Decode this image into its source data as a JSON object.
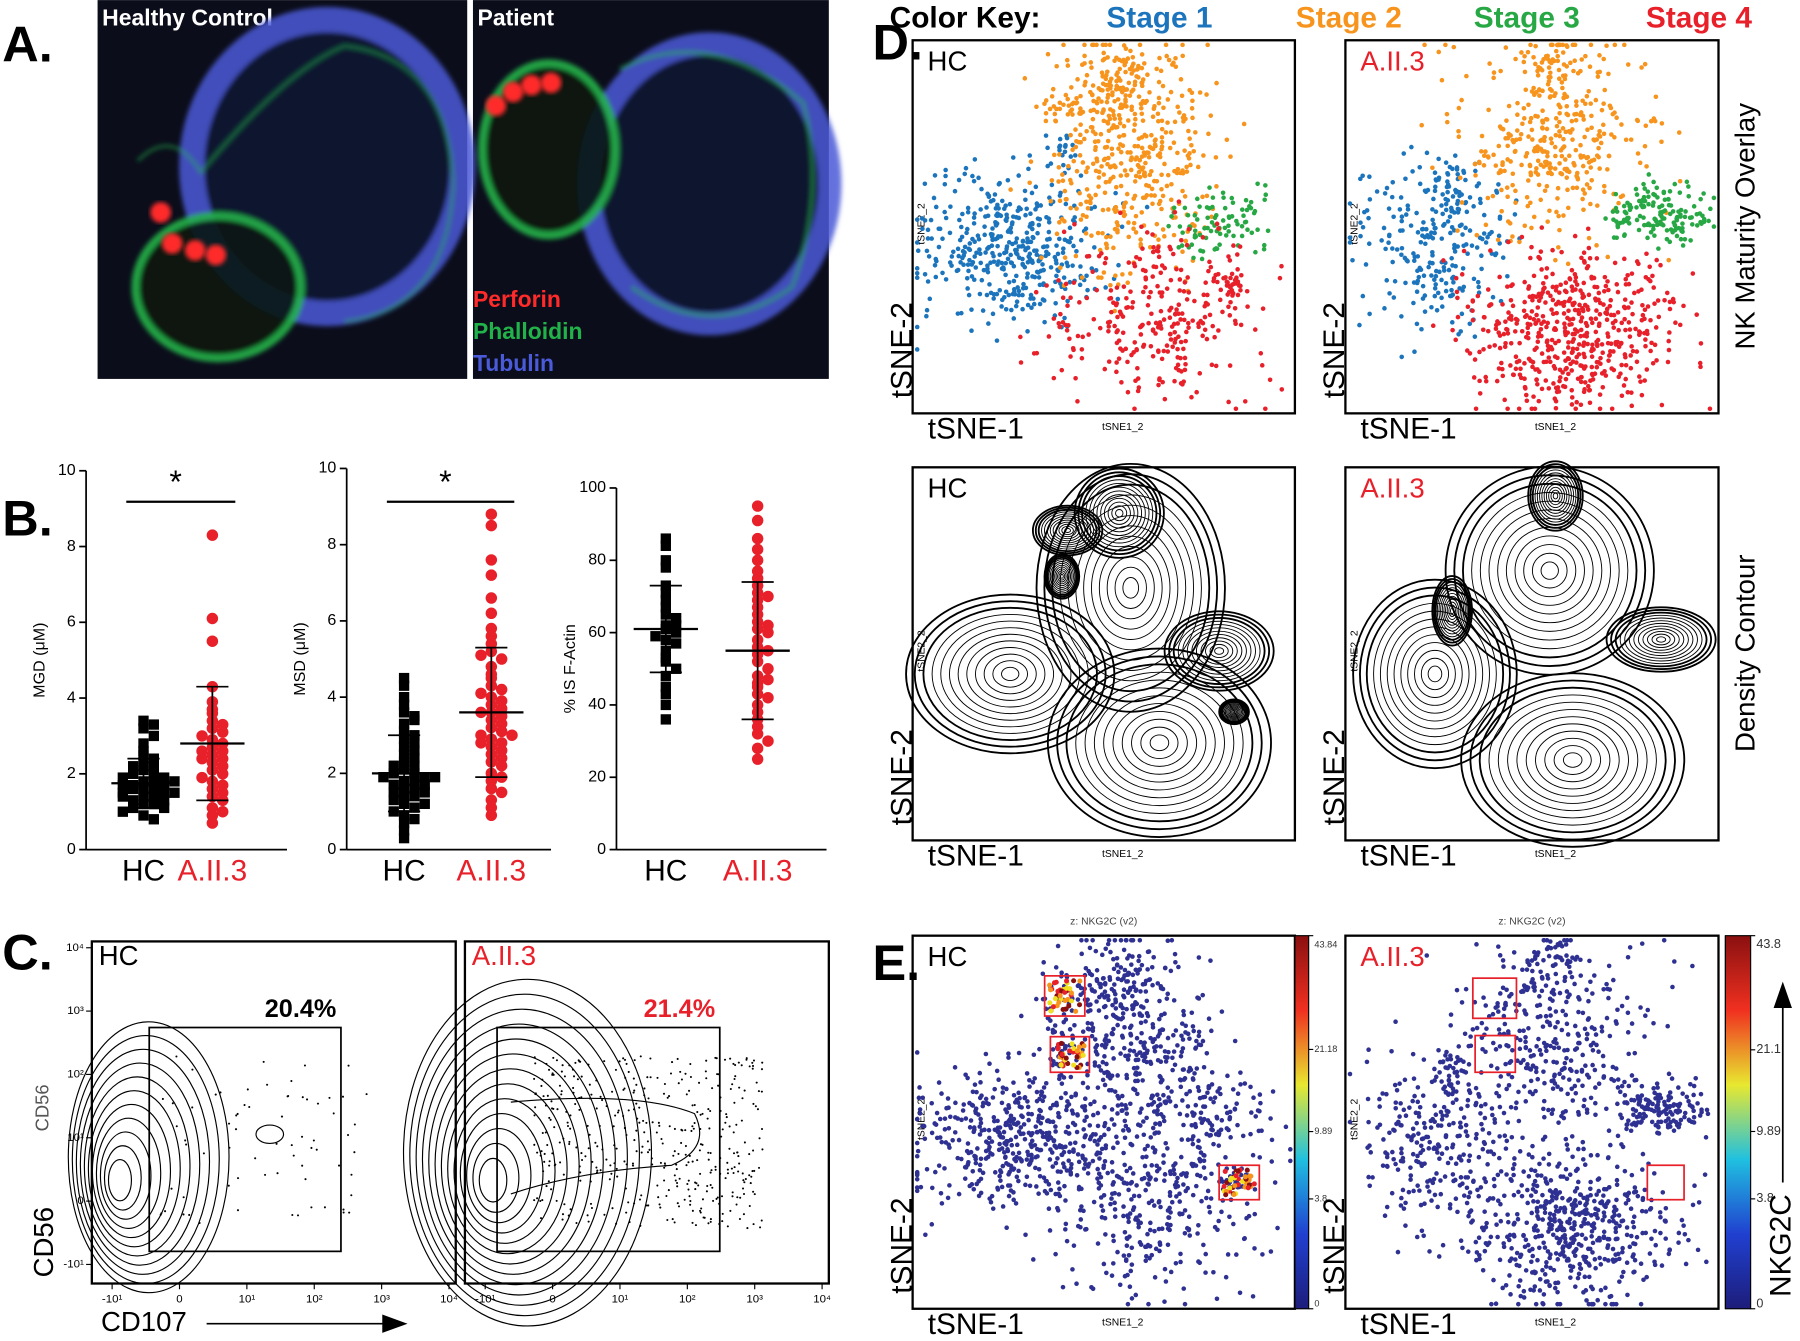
{
  "panel_a": {
    "label": "A.",
    "images": [
      {
        "title": "Healthy Control"
      },
      {
        "title": "Patient"
      }
    ],
    "legend": [
      {
        "name": "Perforin",
        "color": "#ff2a2a"
      },
      {
        "name": "Phalloidin",
        "color": "#22b24a"
      },
      {
        "name": "Tubulin",
        "color": "#4a5ad8"
      }
    ]
  },
  "panel_b": {
    "label": "B.",
    "charts": [
      {
        "type": "scatter",
        "y_label": "MGD (μM)",
        "ylim": [
          0,
          10
        ],
        "yticks": [
          0,
          2,
          4,
          6,
          8,
          10
        ],
        "significance": "*",
        "groups": [
          {
            "category": "HC",
            "color": "#000000",
            "marker": "square",
            "mean": 1.75,
            "sd": 0.65,
            "values": [
              3.4,
              3.3,
              3.2,
              3.0,
              2.8,
              2.6,
              2.5,
              2.4,
              2.3,
              2.2,
              2.1,
              2.0,
              2.0,
              1.9,
              1.9,
              1.8,
              1.8,
              1.7,
              1.7,
              1.7,
              1.6,
              1.6,
              1.6,
              1.5,
              1.5,
              1.5,
              1.4,
              1.4,
              1.3,
              1.3,
              1.2,
              1.2,
              1.1,
              1.1,
              1.0,
              0.9,
              0.8,
              1.8,
              2.2,
              1.4
            ]
          },
          {
            "category": "A.II.3",
            "color": "#e8202a",
            "marker": "circle",
            "mean": 2.8,
            "sd": 1.5,
            "values": [
              8.3,
              6.1,
              5.5,
              4.3,
              3.9,
              3.7,
              3.6,
              3.4,
              3.3,
              3.2,
              3.1,
              3.0,
              2.9,
              2.8,
              2.7,
              2.6,
              2.6,
              2.5,
              2.4,
              2.3,
              2.2,
              2.1,
              2.0,
              1.9,
              1.8,
              1.7,
              1.6,
              1.5,
              1.4,
              1.3,
              1.1,
              1.0,
              0.9,
              0.7,
              2.4
            ]
          }
        ]
      },
      {
        "type": "scatter",
        "y_label": "MSD (μM)",
        "ylim": [
          0,
          10
        ],
        "yticks": [
          0,
          2,
          4,
          6,
          8,
          10
        ],
        "significance": "*",
        "groups": [
          {
            "category": "HC",
            "color": "#000000",
            "marker": "square",
            "mean": 2.0,
            "sd": 1.0,
            "values": [
              4.5,
              4.3,
              4.0,
              3.8,
              3.6,
              3.5,
              3.3,
              3.1,
              3.0,
              2.9,
              2.7,
              2.6,
              2.5,
              2.4,
              2.3,
              2.2,
              2.1,
              2.0,
              2.0,
              1.9,
              1.9,
              1.8,
              1.8,
              1.7,
              1.7,
              1.6,
              1.6,
              1.5,
              1.5,
              1.4,
              1.4,
              1.3,
              1.2,
              1.1,
              1.0,
              0.9,
              0.8,
              0.7,
              0.5,
              0.3,
              2.2,
              1.9,
              2.8,
              3.4,
              1.2
            ]
          },
          {
            "category": "A.II.3",
            "color": "#e8202a",
            "marker": "circle",
            "mean": 3.6,
            "sd": 1.7,
            "values": [
              8.8,
              8.5,
              7.6,
              7.2,
              6.6,
              6.2,
              5.8,
              5.6,
              5.4,
              5.2,
              5.0,
              4.8,
              4.6,
              4.5,
              4.3,
              4.2,
              4.0,
              3.9,
              3.8,
              3.7,
              3.6,
              3.5,
              3.4,
              3.3,
              3.2,
              3.1,
              3.0,
              2.9,
              2.8,
              2.7,
              2.6,
              2.5,
              2.4,
              2.3,
              2.2,
              2.0,
              1.9,
              1.8,
              1.6,
              1.5,
              1.3,
              1.1,
              0.9,
              3.6,
              4.1,
              2.8,
              5.1,
              3.0
            ]
          }
        ]
      },
      {
        "type": "scatter",
        "y_label": "% IS F-Actin",
        "ylim": [
          0,
          100
        ],
        "yticks": [
          0,
          20,
          40,
          60,
          80,
          100
        ],
        "groups": [
          {
            "category": "HC",
            "color": "#000000",
            "marker": "square",
            "mean": 61,
            "sd": 12,
            "values": [
              86,
              84,
              80,
              78,
              73,
              71,
              69,
              67,
              65,
              64,
              62,
              61,
              60,
              59,
              58,
              57,
              55,
              53,
              52,
              50,
              48,
              45,
              43,
              40,
              36,
              62
            ]
          },
          {
            "category": "A.II.3",
            "color": "#e8202a",
            "marker": "circle",
            "mean": 55,
            "sd": 19,
            "values": [
              95,
              91,
              86,
              83,
              80,
              77,
              75,
              73,
              71,
              69,
              67,
              65,
              63,
              61,
              60,
              58,
              56,
              54,
              52,
              50,
              48,
              46,
              45,
              43,
              42,
              40,
              38,
              36,
              34,
              32,
              30,
              28,
              25,
              55,
              47,
              62,
              70
            ]
          }
        ]
      }
    ]
  },
  "panel_c": {
    "label": "C.",
    "y_label": "CD56",
    "y_label_overlay": "CD56",
    "x_label": "CD107",
    "lim": [
      -20,
      12589
    ],
    "ticks": [
      {
        "value": -10,
        "label": "-10¹"
      },
      0,
      {
        "value": 10,
        "label": "10¹"
      },
      {
        "value": 100,
        "label": "10²"
      },
      {
        "value": 1000,
        "label": "10³"
      },
      {
        "value": 10000,
        "label": "10⁴"
      }
    ],
    "plots": [
      {
        "title": "HC",
        "color": "#000000",
        "gate_percent": {
          "value": 20.4,
          "label": "20.4%"
        }
      },
      {
        "title": "A.II.3",
        "color": "#e8202a",
        "gate_percent": {
          "value": 21.4,
          "label": "21.4%"
        }
      }
    ]
  },
  "panel_d": {
    "label": "D.",
    "color_key": "Color Key:",
    "stages": [
      {
        "name": "Stage 1",
        "color": "#1c75bc"
      },
      {
        "name": "Stage 2",
        "color": "#f7941d"
      },
      {
        "name": "Stage 3",
        "color": "#27a844"
      },
      {
        "name": "Stage 4",
        "color": "#e8202a"
      }
    ],
    "rows": [
      "NK Maturity Overlay",
      "Density Contour"
    ],
    "plots": [
      {
        "title": "HC",
        "color": "#000000"
      },
      {
        "title": "A.II.3",
        "color": "#e8202a"
      }
    ],
    "x_label": "tSNE-1",
    "y_label": "tSNE-2",
    "x_param": "tSNE1_2",
    "y_param": "tSNE2_2"
  },
  "panel_e": {
    "label": "E.",
    "colorbar_label": "NKG2C",
    "point_color": "#2e3192",
    "plots": [
      {
        "title": "HC",
        "color": "#000000",
        "colorbar_title": "z: NKG2C (v2)",
        "clim": [
          0,
          43.84
        ],
        "colorbar_ticks": [
          43.84,
          21.18,
          9.89,
          3.8,
          0
        ]
      },
      {
        "title": "A.II.3",
        "color": "#e8202a",
        "colorbar_title": "z: NKG2C (v2)",
        "clim": [
          0,
          43.8
        ],
        "colorbar_ticks": [
          43.8,
          21.1,
          9.89,
          3.8,
          0
        ]
      }
    ]
  }
}
